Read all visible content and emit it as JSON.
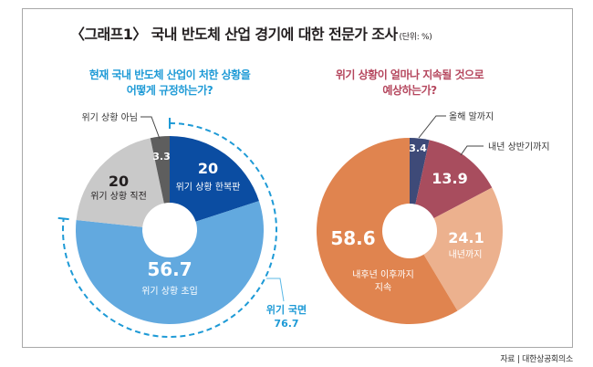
{
  "header": {
    "title": "〈그래프1〉 국내 반도체 산업 경기에 대한 전문가 조사",
    "unit": "(단위: %)"
  },
  "source": "자료 | 대한상공회의소",
  "colors": {
    "frame": "#a8a8a8",
    "left_subtitle": "#1e9ad6",
    "right_subtitle": "#b5475e"
  },
  "chart_data": [
    {
      "type": "pie",
      "style": "donut",
      "title_lines": [
        "현재 국내 반도체 산업이 처한 상황을",
        "어떻게 규정하는가?"
      ],
      "unit": "%",
      "slices": [
        {
          "label": "위기 상황 한복판",
          "value": 20,
          "value_text": "20",
          "color": "#0b4da2",
          "text_color": "#ffffff"
        },
        {
          "label": "위기 상황 초입",
          "value": 56.7,
          "value_text": "56.7",
          "color": "#62a9df",
          "text_color": "#ffffff"
        },
        {
          "label": "위기 상황 직전",
          "value": 20,
          "value_text": "20",
          "color": "#c9c9c9",
          "text_color": "#231f20"
        },
        {
          "label": "위기 상황 아님",
          "value": 3.3,
          "value_text": "3.3",
          "color": "#5e5e5e",
          "text_color": "#ffffff",
          "callout": true
        }
      ],
      "bracket": {
        "label": "위기 국면",
        "value": 76.7,
        "value_text": "76.7",
        "color": "#1e9ad6",
        "covers": [
          "위기 상황 한복판",
          "위기 상황 초입"
        ]
      }
    },
    {
      "type": "pie",
      "style": "donut",
      "title_lines": [
        "위기 상황이 얼마나 지속될 것으로",
        "예상하는가?"
      ],
      "unit": "%",
      "slices": [
        {
          "label": "올해 말까지",
          "value": 3.4,
          "value_text": "3.4",
          "color": "#3e4a78",
          "text_color": "#ffffff",
          "callout": true
        },
        {
          "label": "내년 상반기까지",
          "value": 13.9,
          "value_text": "13.9",
          "color": "#a84d5e",
          "text_color": "#ffffff",
          "callout": true
        },
        {
          "label": "내년까지",
          "value": 24.1,
          "value_text": "24.1",
          "color": "#ecb18e",
          "text_color": "#ffffff"
        },
        {
          "label": "내후년 이후까지 지속",
          "label_lines": [
            "내후년 이후까지",
            "지속"
          ],
          "value": 58.6,
          "value_text": "58.6",
          "color": "#e0844f",
          "text_color": "#ffffff"
        }
      ]
    }
  ]
}
